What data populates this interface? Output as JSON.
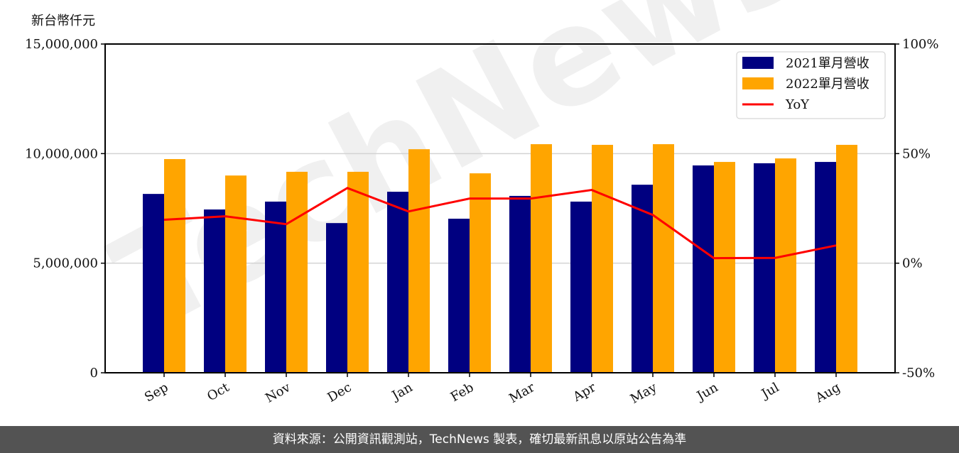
{
  "chart_data": {
    "type": "bar",
    "title": "",
    "ylabel": "新台幣仟元",
    "xlabel": "",
    "ylim": [
      0,
      15000000
    ],
    "y2lim": [
      -50,
      100
    ],
    "yticks": [
      "0",
      "5,000,000",
      "10,000,000",
      "15,000,000"
    ],
    "y2ticks": [
      "-50%",
      "0%",
      "50%",
      "100%"
    ],
    "categories": [
      "Sep",
      "Oct",
      "Nov",
      "Dec",
      "Jan",
      "Feb",
      "Mar",
      "Apr",
      "May",
      "Jun",
      "Jul",
      "Aug"
    ],
    "series": [
      {
        "name": "2021單月營收",
        "type": "bar",
        "color": "#000080",
        "values": [
          8160000,
          7450000,
          7810000,
          6830000,
          8260000,
          7030000,
          8070000,
          7810000,
          8580000,
          9460000,
          9560000,
          9620000
        ]
      },
      {
        "name": "2022單月營收",
        "type": "bar",
        "color": "#FFA500",
        "values": [
          9750000,
          9000000,
          9170000,
          9170000,
          10200000,
          9100000,
          10430000,
          10400000,
          10430000,
          9620000,
          9780000,
          10400000
        ]
      },
      {
        "name": "YoY",
        "type": "line",
        "axis": "right",
        "color": "#FF0000",
        "values": [
          19.8,
          21.4,
          17.8,
          34.3,
          23.6,
          29.5,
          29.5,
          33.4,
          22.0,
          2.3,
          2.4,
          8.1
        ]
      }
    ],
    "grid": "horizontal",
    "legend_position": "upper right",
    "watermark": "TechNews"
  },
  "unit_label": "新台幣仟元",
  "footer": "資料來源：公開資訊觀測站，TechNews 製表，確切最新訊息以原站公告為準"
}
